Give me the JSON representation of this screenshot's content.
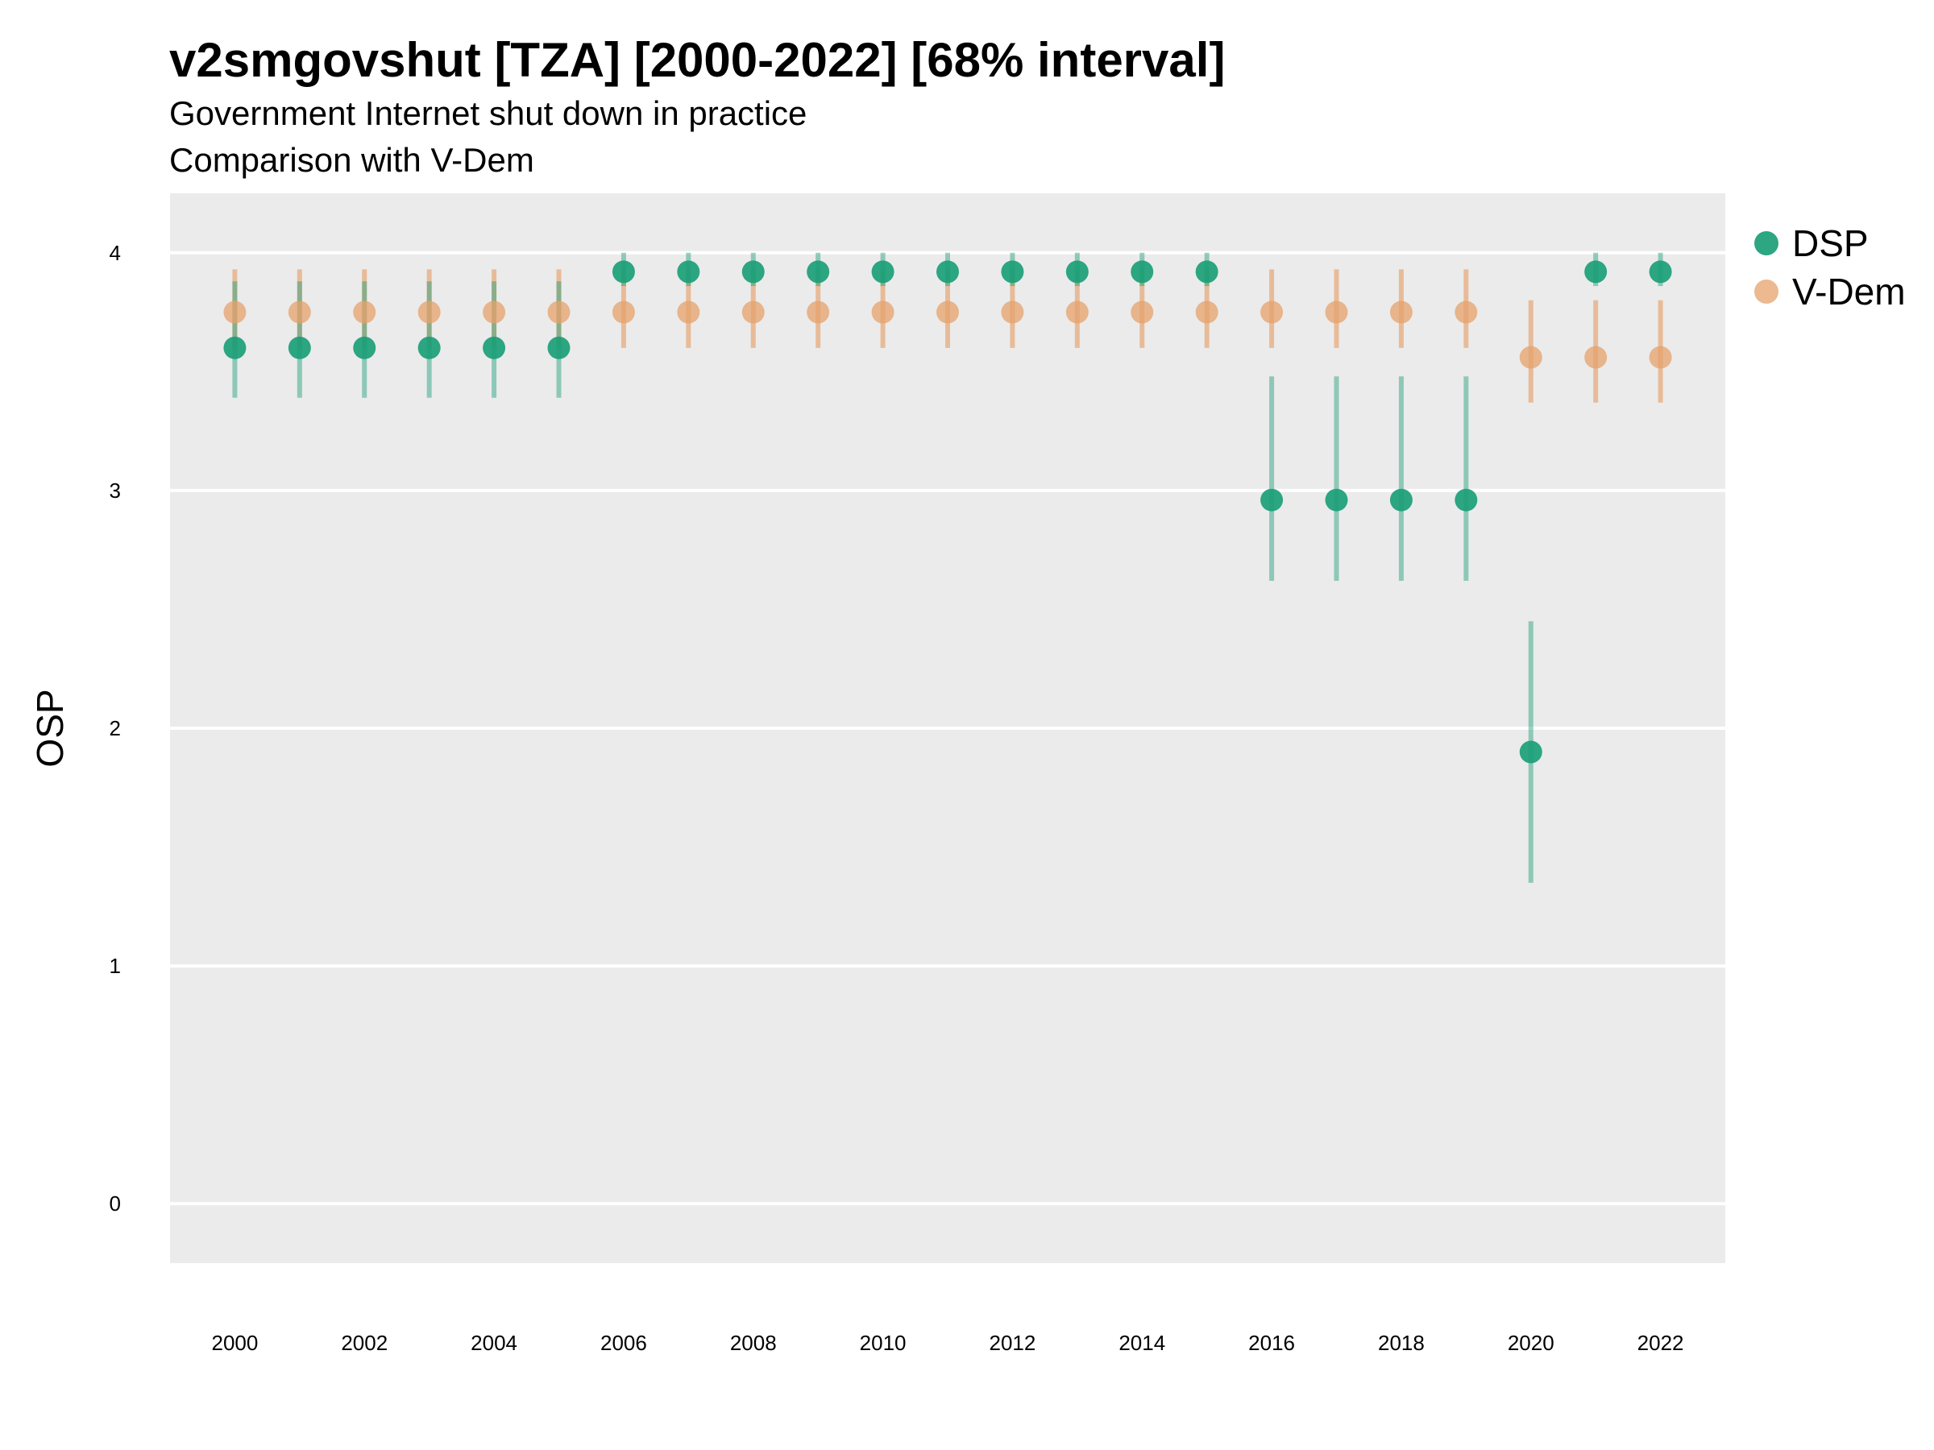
{
  "chart_data": {
    "type": "scatter",
    "title": "v2smgovshut [TZA] [2000-2022] [68% interval]",
    "subtitle": [
      "Government Internet shut down in practice",
      "Comparison with V-Dem"
    ],
    "xlabel": "",
    "ylabel": "OSP",
    "xlim": [
      1999.0,
      2023.0
    ],
    "ylim": [
      -0.25,
      4.25
    ],
    "x_ticks": [
      "2000",
      "2002",
      "2004",
      "2006",
      "2008",
      "2010",
      "2012",
      "2014",
      "2016",
      "2018",
      "2020",
      "2022"
    ],
    "y_ticks": [
      "0",
      "1",
      "2",
      "3",
      "4"
    ],
    "legend": {
      "position": "right"
    },
    "x": [
      2000,
      2001,
      2002,
      2003,
      2004,
      2005,
      2006,
      2007,
      2008,
      2009,
      2010,
      2011,
      2012,
      2013,
      2014,
      2015,
      2016,
      2017,
      2018,
      2019,
      2020,
      2021,
      2022
    ],
    "series": [
      {
        "name": "DSP",
        "color": "#1b9e77",
        "values": [
          3.6,
          3.6,
          3.6,
          3.6,
          3.6,
          3.6,
          3.92,
          3.92,
          3.92,
          3.92,
          3.92,
          3.92,
          3.92,
          3.92,
          3.92,
          3.92,
          2.96,
          2.96,
          2.96,
          2.96,
          1.9,
          3.92,
          3.92
        ],
        "lower": [
          3.39,
          3.39,
          3.39,
          3.39,
          3.39,
          3.39,
          3.86,
          3.86,
          3.86,
          3.86,
          3.86,
          3.86,
          3.86,
          3.86,
          3.86,
          3.86,
          2.62,
          2.62,
          2.62,
          2.62,
          1.35,
          3.86,
          3.86
        ],
        "upper": [
          3.88,
          3.88,
          3.88,
          3.88,
          3.88,
          3.88,
          4.0,
          4.0,
          4.0,
          4.0,
          4.0,
          4.0,
          4.0,
          4.0,
          4.0,
          4.0,
          3.48,
          3.48,
          3.48,
          3.48,
          2.45,
          4.0,
          4.0
        ]
      },
      {
        "name": "V-Dem",
        "color": "#e6a16b",
        "values": [
          3.75,
          3.75,
          3.75,
          3.75,
          3.75,
          3.75,
          3.75,
          3.75,
          3.75,
          3.75,
          3.75,
          3.75,
          3.75,
          3.75,
          3.75,
          3.75,
          3.75,
          3.75,
          3.75,
          3.75,
          3.56,
          3.56,
          3.56
        ],
        "lower": [
          3.6,
          3.6,
          3.6,
          3.6,
          3.6,
          3.6,
          3.6,
          3.6,
          3.6,
          3.6,
          3.6,
          3.6,
          3.6,
          3.6,
          3.6,
          3.6,
          3.6,
          3.6,
          3.6,
          3.6,
          3.37,
          3.37,
          3.37
        ],
        "upper": [
          3.93,
          3.93,
          3.93,
          3.93,
          3.93,
          3.93,
          3.93,
          3.93,
          3.93,
          3.93,
          3.93,
          3.93,
          3.93,
          3.93,
          3.93,
          3.93,
          3.93,
          3.93,
          3.93,
          3.93,
          3.8,
          3.8,
          3.8
        ]
      }
    ]
  }
}
